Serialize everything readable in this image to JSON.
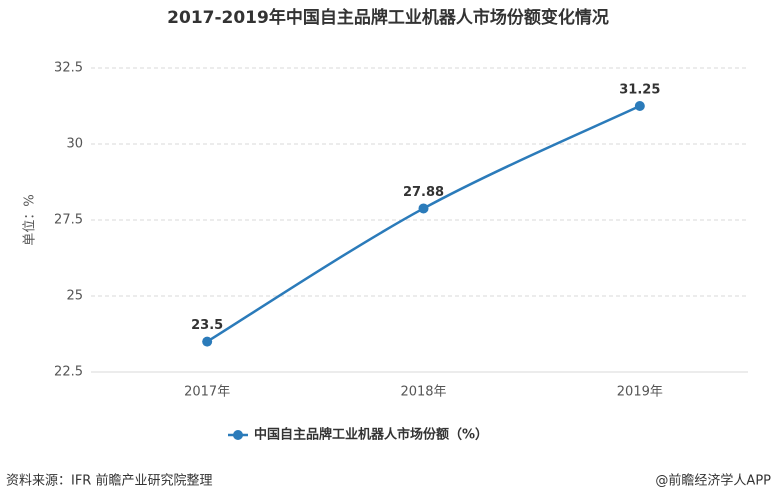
{
  "chart_data": {
    "type": "line",
    "title": "2017-2019年中国自主品牌工业机器人市场份额变化情况",
    "y_label": "单位：%",
    "categories": [
      "2017年",
      "2018年",
      "2019年"
    ],
    "series": [
      {
        "name": "中国自主品牌工业机器人市场份额（%）",
        "color": "#2b7bba",
        "values": [
          23.5,
          27.88,
          31.25
        ]
      }
    ],
    "ylim": [
      22.5,
      32.5
    ],
    "yticks": [
      22.5,
      25,
      27.5,
      30,
      32.5
    ],
    "grid": true,
    "legend": "bottom"
  },
  "footer": {
    "source": "资料来源：IFR 前瞻产业研究院整理",
    "credit": "@前瞻经济学人APP"
  }
}
